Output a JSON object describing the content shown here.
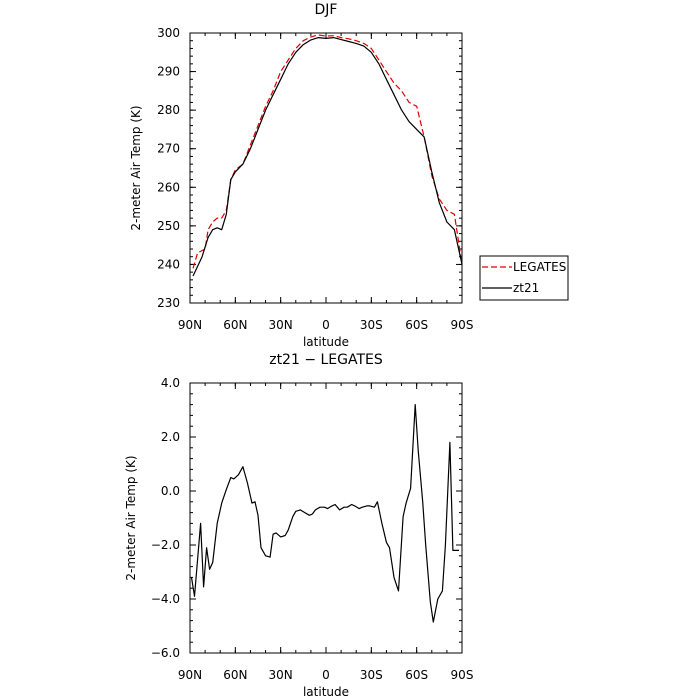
{
  "chart_data": [
    {
      "type": "line",
      "title": "DJF",
      "xlabel": "latitude",
      "ylabel": "2-meter Air Temp (K)",
      "xlim": [
        90,
        -90
      ],
      "ylim": [
        230,
        300
      ],
      "x_ticks": [
        90,
        60,
        30,
        0,
        -30,
        -60,
        -90
      ],
      "x_tick_labels": [
        "90N",
        "60N",
        "30N",
        "0",
        "30S",
        "60S",
        "90S"
      ],
      "y_ticks": [
        230,
        240,
        250,
        260,
        270,
        280,
        290,
        300
      ],
      "y_tick_labels": [
        "230",
        "240",
        "250",
        "260",
        "270",
        "280",
        "290",
        "300"
      ],
      "grid": false,
      "legend": "right, outside plot",
      "series": [
        {
          "name": "LEGATES",
          "color": "#e00000",
          "dash": "dashed",
          "x": [
            88,
            85,
            80,
            78,
            75,
            72,
            69,
            66,
            63,
            60,
            55,
            50,
            45,
            40,
            35,
            30,
            25,
            20,
            15,
            10,
            5,
            0,
            -5,
            -10,
            -15,
            -20,
            -25,
            -30,
            -35,
            -40,
            -45,
            -50,
            -55,
            -60,
            -65,
            -70,
            -75,
            -80,
            -85,
            -90
          ],
          "y": [
            239,
            243,
            244,
            249,
            251,
            252,
            252,
            254,
            262,
            264.5,
            266,
            271,
            276,
            281,
            285,
            290,
            293,
            296,
            298,
            299,
            299.5,
            299.2,
            299.3,
            298.8,
            298.5,
            298,
            297.3,
            296,
            293,
            290,
            287,
            285,
            282,
            281,
            273,
            263,
            257,
            254,
            253,
            240
          ]
        },
        {
          "name": "zt21",
          "color": "#000000",
          "dash": "solid",
          "x": [
            88,
            85,
            82,
            80,
            78,
            75,
            72,
            69,
            66,
            63,
            60,
            55,
            50,
            45,
            40,
            35,
            30,
            25,
            20,
            15,
            10,
            5,
            0,
            -5,
            -10,
            -15,
            -20,
            -25,
            -30,
            -35,
            -40,
            -45,
            -50,
            -55,
            -60,
            -65,
            -70,
            -75,
            -80,
            -85,
            -90
          ],
          "y": [
            237,
            239.5,
            242,
            244.5,
            247,
            249,
            249.5,
            249,
            253,
            262,
            264,
            266,
            270,
            275,
            280,
            284,
            288,
            292,
            295,
            297,
            298.2,
            298.8,
            298.6,
            298.8,
            298.3,
            297.8,
            297.3,
            296.6,
            295,
            292,
            288,
            284,
            280,
            277,
            275,
            273,
            264,
            256,
            251,
            249,
            240
          ]
        }
      ]
    },
    {
      "type": "line",
      "title": "zt21 − LEGATES",
      "xlabel": "latitude",
      "ylabel": "2-meter Air Temp (K)",
      "xlim": [
        90,
        -90
      ],
      "ylim": [
        -6,
        4
      ],
      "x_ticks": [
        90,
        60,
        30,
        0,
        -30,
        -60,
        -90
      ],
      "x_tick_labels": [
        "90N",
        "60N",
        "30N",
        "0",
        "30S",
        "60S",
        "90S"
      ],
      "y_ticks": [
        -6,
        -4,
        -2,
        0,
        2,
        4
      ],
      "y_tick_labels": [
        "−6.0",
        "−4.0",
        "−2.0",
        "0.0",
        "2.0",
        "4.0"
      ],
      "grid": false,
      "series": [
        {
          "color": "#000000",
          "dash": "solid",
          "x": [
            89,
            87,
            83,
            81,
            79,
            77,
            75,
            72,
            69,
            66,
            63,
            61,
            58,
            55,
            52,
            49,
            47,
            45,
            43,
            40,
            37,
            35,
            33,
            30,
            27,
            25,
            22,
            20,
            17,
            14,
            11,
            9,
            7,
            4,
            1,
            -1,
            -4,
            -6,
            -9,
            -12,
            -14,
            -17,
            -19,
            -22,
            -24,
            -27,
            -29,
            -32,
            -34,
            -37,
            -40,
            -42,
            -45,
            -48,
            -51,
            -53,
            -56,
            -59,
            -61,
            -64,
            -66,
            -69,
            -71,
            -74,
            -77,
            -79,
            -82,
            -84,
            -86,
            -88
          ],
          "y": [
            -3.2,
            -3.9,
            -1.2,
            -3.55,
            -2.1,
            -2.9,
            -2.65,
            -1.2,
            -0.45,
            0.05,
            0.5,
            0.45,
            0.6,
            0.9,
            0.3,
            -0.45,
            -0.4,
            -0.9,
            -2.1,
            -2.4,
            -2.45,
            -1.6,
            -1.55,
            -1.7,
            -1.65,
            -1.45,
            -0.95,
            -0.75,
            -0.7,
            -0.8,
            -0.9,
            -0.85,
            -0.7,
            -0.6,
            -0.6,
            -0.65,
            -0.55,
            -0.5,
            -0.7,
            -0.6,
            -0.6,
            -0.5,
            -0.55,
            -0.65,
            -0.6,
            -0.55,
            -0.55,
            -0.6,
            -0.4,
            -1.2,
            -1.9,
            -2.1,
            -3.2,
            -3.7,
            -0.95,
            -0.45,
            0.1,
            3.2,
            1.5,
            -0.4,
            -2.0,
            -4.1,
            -4.85,
            -4.0,
            -3.7,
            -2.0,
            1.8,
            -2.2,
            -2.2,
            -2.2
          ]
        }
      ]
    }
  ]
}
